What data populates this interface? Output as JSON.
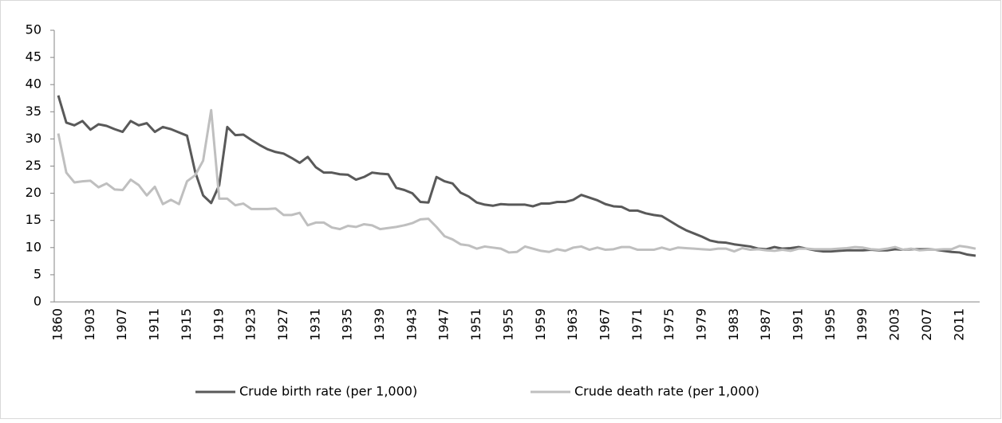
{
  "chart_data": {
    "type": "line",
    "categories": [
      "1860",
      null,
      null,
      null,
      "1903",
      null,
      null,
      null,
      "1907",
      null,
      null,
      null,
      "1911",
      null,
      null,
      null,
      "1915",
      null,
      null,
      null,
      "1919",
      null,
      null,
      null,
      "1923",
      null,
      null,
      null,
      "1927",
      null,
      null,
      null,
      "1931",
      null,
      null,
      null,
      "1935",
      null,
      null,
      null,
      "1939",
      null,
      null,
      null,
      "1943",
      null,
      null,
      null,
      "1947",
      null,
      null,
      null,
      "1951",
      null,
      null,
      null,
      "1955",
      null,
      null,
      null,
      "1959",
      null,
      null,
      null,
      "1963",
      null,
      null,
      null,
      "1967",
      null,
      null,
      null,
      "1971",
      null,
      null,
      null,
      "1975",
      null,
      null,
      null,
      "1979",
      null,
      null,
      null,
      "1983",
      null,
      null,
      null,
      "1987",
      null,
      null,
      null,
      "1991",
      null,
      null,
      null,
      "1995",
      null,
      null,
      null,
      "1999",
      null,
      null,
      null,
      "2003",
      null,
      null,
      null,
      "2007",
      null,
      null,
      null,
      "2011",
      null,
      null
    ],
    "series": [
      {
        "name": "Crude birth rate (per 1,000)",
        "color": "#595959",
        "values": [
          38,
          33,
          32.5,
          33.3,
          31.7,
          32.7,
          32.4,
          31.8,
          31.3,
          33.3,
          32.5,
          32.9,
          31.3,
          32.2,
          31.8,
          31.2,
          30.6,
          24,
          19.6,
          18.2,
          21.5,
          32.2,
          30.7,
          30.8,
          29.8,
          28.9,
          28.1,
          27.6,
          27.3,
          26.5,
          25.6,
          26.7,
          24.8,
          23.8,
          23.8,
          23.5,
          23.4,
          22.5,
          23,
          23.8,
          23.6,
          23.5,
          21,
          20.6,
          20,
          18.4,
          18.3,
          23,
          22.2,
          21.8,
          20.1,
          19.4,
          18.3,
          17.9,
          17.7,
          18,
          17.9,
          17.9,
          17.9,
          17.6,
          18.1,
          18.1,
          18.4,
          18.4,
          18.8,
          19.7,
          19.2,
          18.7,
          18,
          17.6,
          17.5,
          16.8,
          16.8,
          16.3,
          16,
          15.8,
          14.9,
          14,
          13.2,
          12.6,
          12,
          11.3,
          11,
          10.9,
          10.6,
          10.4,
          10.2,
          9.8,
          9.7,
          10.1,
          9.8,
          9.9,
          10.1,
          9.8,
          9.5,
          9.3,
          9.3,
          9.4,
          9.5,
          9.5,
          9.5,
          9.6,
          9.5,
          9.5,
          9.7,
          9.6,
          9.7,
          9.7,
          9.7,
          9.6,
          9.4,
          9.2,
          9.1,
          8.7,
          8.5
        ]
      },
      {
        "name": "Crude death rate (per 1,000)",
        "color": "#bfbfbf",
        "values": [
          31,
          23.8,
          22,
          22.2,
          22.3,
          21.1,
          21.8,
          20.7,
          20.6,
          22.5,
          21.5,
          19.6,
          21.2,
          18,
          18.8,
          18,
          22.2,
          23.3,
          26,
          35.3,
          19,
          19,
          17.8,
          18.1,
          17.1,
          17.1,
          17.1,
          17.2,
          16,
          16,
          16.4,
          14.1,
          14.6,
          14.6,
          13.7,
          13.4,
          14,
          13.8,
          14.3,
          14.1,
          13.4,
          13.6,
          13.8,
          14.1,
          14.5,
          15.2,
          15.3,
          13.8,
          12.1,
          11.5,
          10.6,
          10.4,
          9.8,
          10.2,
          10,
          9.8,
          9.1,
          9.2,
          10.2,
          9.8,
          9.4,
          9.2,
          9.7,
          9.4,
          10,
          10.2,
          9.6,
          10,
          9.6,
          9.7,
          10.1,
          10.1,
          9.6,
          9.6,
          9.6,
          10,
          9.6,
          10,
          9.9,
          9.8,
          9.7,
          9.6,
          9.8,
          9.8,
          9.3,
          9.9,
          9.6,
          9.7,
          9.5,
          9.4,
          9.6,
          9.4,
          9.8,
          9.8,
          9.7,
          9.7,
          9.7,
          9.8,
          9.9,
          10.1,
          10,
          9.7,
          9.6,
          9.8,
          10.1,
          9.6,
          9.8,
          9.5,
          9.6,
          9.6,
          9.7,
          9.7,
          10.3,
          10.1,
          9.8
        ]
      }
    ],
    "ylim": [
      0,
      50
    ],
    "yticks": [
      0,
      5,
      10,
      15,
      20,
      25,
      30,
      35,
      40,
      45,
      50
    ],
    "grid": false,
    "legend": "bottom"
  }
}
